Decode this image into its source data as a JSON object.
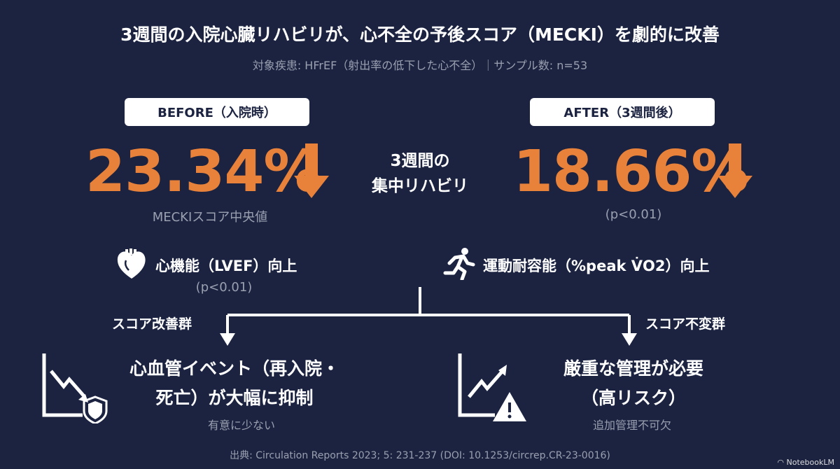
{
  "title": "3週間の入院心臓リハビリが、心不全の予後スコア（MECKI）を劇的に改善",
  "subtitle": "対象疾患: HFrEF（射出率の低下した心不全）｜サンプル数: n=53",
  "before": {
    "label": "BEFORE（入院時）",
    "value": "23.34%",
    "caption": "MECKIスコア中央値"
  },
  "after": {
    "label": "AFTER（3週間後）",
    "value": "18.66%",
    "caption": "(p<0.01)"
  },
  "intervention": {
    "line1": "3週間の",
    "line2": "集中リハビリ"
  },
  "feature_left": {
    "label": "心機能（LVEF）向上",
    "note": "(p<0.01)"
  },
  "feature_right": {
    "label": "運動耐容能（%peak V̇O2）向上"
  },
  "branch_left": {
    "group": "スコア改善群",
    "line1": "心血管イベント（再入院・",
    "line2": "死亡）が大幅に抑制",
    "note": "有意に少ない"
  },
  "branch_right": {
    "group": "スコア不変群",
    "line1": "厳重な管理が必要",
    "line2": "（高リスク）",
    "note": "追加管理不可欠"
  },
  "source": "出典: Circulation Reports 2023; 5: 231-237 (DOI: 10.1253/circrep.CR-23-0016)",
  "watermark": "NotebookLM",
  "colors": {
    "background": "#1b2341",
    "accent": "#e8823a"
  }
}
